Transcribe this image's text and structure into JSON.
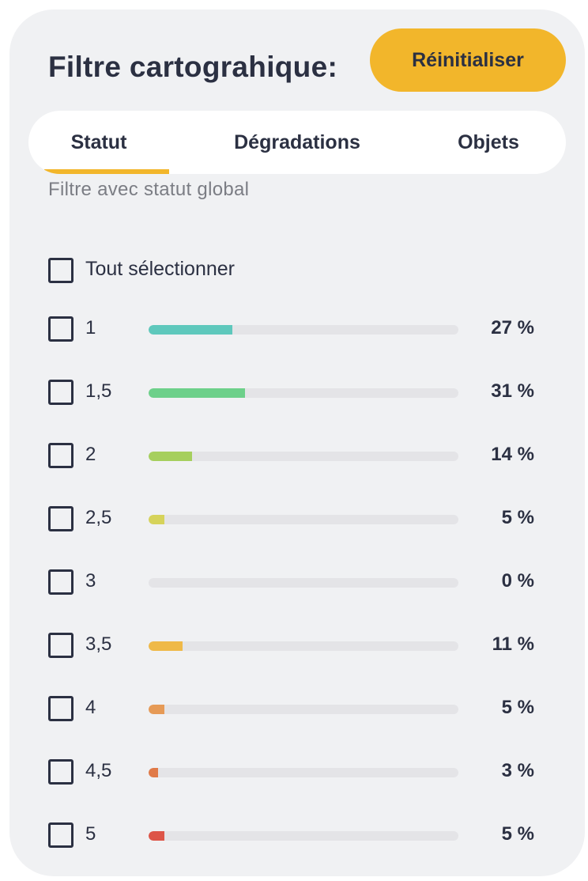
{
  "header": {
    "title": "Filtre cartograhique:",
    "reset_label": "Réinitialiser"
  },
  "tabs": [
    {
      "label": "Statut",
      "active": true
    },
    {
      "label": "Dégradations",
      "active": false
    },
    {
      "label": "Objets",
      "active": false
    }
  ],
  "subtitle": "Filtre avec statut global",
  "select_all_label": "Tout sélectionner",
  "accent_color": "#f2b62b",
  "rows": [
    {
      "label": "1",
      "percent_label": "27 %",
      "fill_fraction": 0.27,
      "color": "#5ec8bc"
    },
    {
      "label": "1,5",
      "percent_label": "31 %",
      "fill_fraction": 0.31,
      "color": "#6dd08a"
    },
    {
      "label": "2",
      "percent_label": "14 %",
      "fill_fraction": 0.14,
      "color": "#a6cf5e"
    },
    {
      "label": "2,5",
      "percent_label": "5 %",
      "fill_fraction": 0.05,
      "color": "#d6d35a"
    },
    {
      "label": "3",
      "percent_label": "0 %",
      "fill_fraction": 0.0,
      "color": "#e9c44b"
    },
    {
      "label": "3,5",
      "percent_label": "11 %",
      "fill_fraction": 0.11,
      "color": "#efb948"
    },
    {
      "label": "4",
      "percent_label": "5 %",
      "fill_fraction": 0.05,
      "color": "#e69a56"
    },
    {
      "label": "4,5",
      "percent_label": "3 %",
      "fill_fraction": 0.03,
      "color": "#e07a48"
    },
    {
      "label": "5",
      "percent_label": "5 %",
      "fill_fraction": 0.05,
      "color": "#dd5548"
    }
  ]
}
